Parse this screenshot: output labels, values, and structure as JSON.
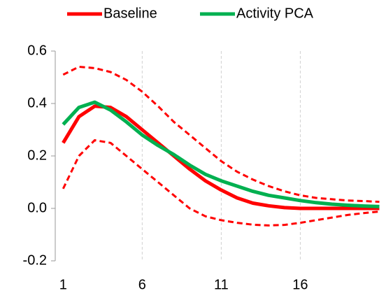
{
  "chart_data": {
    "type": "line",
    "x": [
      1,
      2,
      3,
      4,
      5,
      6,
      7,
      8,
      9,
      10,
      11,
      12,
      13,
      14,
      15,
      16,
      17,
      18,
      19,
      20,
      21
    ],
    "series": [
      {
        "name": "Baseline",
        "color": "#ff0000",
        "values": [
          0.25,
          0.35,
          0.39,
          0.385,
          0.35,
          0.3,
          0.25,
          0.2,
          0.15,
          0.105,
          0.07,
          0.04,
          0.02,
          0.01,
          0.003,
          0.0,
          0.0,
          0.0,
          0.0,
          0.0,
          0.0
        ]
      },
      {
        "name": "Activity PCA",
        "color": "#00b050",
        "values": [
          0.32,
          0.385,
          0.405,
          0.375,
          0.33,
          0.28,
          0.24,
          0.205,
          0.165,
          0.13,
          0.105,
          0.085,
          0.065,
          0.05,
          0.04,
          0.03,
          0.022,
          0.016,
          0.012,
          0.009,
          0.007
        ]
      }
    ],
    "bands": [
      {
        "color": "#ff0000",
        "dashed": true,
        "values": [
          0.51,
          0.54,
          0.535,
          0.52,
          0.49,
          0.445,
          0.39,
          0.33,
          0.28,
          0.23,
          0.18,
          0.14,
          0.11,
          0.085,
          0.065,
          0.05,
          0.04,
          0.035,
          0.03,
          0.028,
          0.025
        ]
      },
      {
        "color": "#ff0000",
        "dashed": true,
        "values": [
          0.075,
          0.2,
          0.26,
          0.25,
          0.2,
          0.15,
          0.1,
          0.05,
          0.0,
          -0.03,
          -0.045,
          -0.055,
          -0.062,
          -0.065,
          -0.063,
          -0.055,
          -0.045,
          -0.035,
          -0.025,
          -0.018,
          -0.012
        ]
      }
    ],
    "xlim": [
      0.5,
      21.2
    ],
    "xticks": [
      1,
      6,
      11,
      16
    ],
    "ylim": [
      -0.2,
      0.6
    ],
    "yticks": [
      -0.2,
      {
        "value": 0,
        "label": "0.0"
      },
      0.2,
      0.4,
      0.6
    ],
    "grid": "x",
    "legend": "top"
  }
}
